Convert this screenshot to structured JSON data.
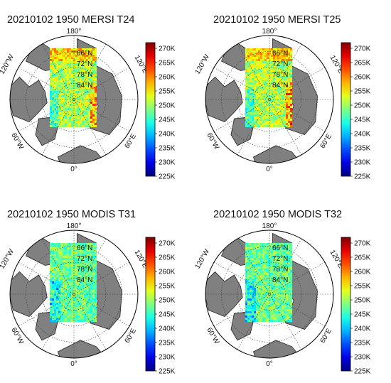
{
  "colorbar": {
    "ticks": [
      "270K",
      "265K",
      "260K",
      "255K",
      "250K",
      "245K",
      "240K",
      "235K",
      "230K",
      "225K"
    ],
    "min": 225,
    "max": 272,
    "colormap": "jet"
  },
  "map": {
    "projection": "north-polar-stereographic",
    "lon_labels": {
      "top": "180°",
      "upper_left": "120°W",
      "upper_right": "120°E",
      "lower_left": "60°W",
      "lower_right": "60°E",
      "bottom": "0°"
    },
    "lat_labels": [
      "66°N",
      "72°N",
      "78°N",
      "84°N"
    ],
    "land_color": "#808080",
    "ocean_color": "#ffffff"
  },
  "panels": [
    {
      "title": "20210102 1950 MERSI T24",
      "sensor": "MERSI"
    },
    {
      "title": "20210102 1950 MERSI T25",
      "sensor": "MERSI"
    },
    {
      "title": "20210102 1950 MODIS T31",
      "sensor": "MODIS"
    },
    {
      "title": "20210102 1950 MODIS T32",
      "sensor": "MODIS"
    }
  ]
}
